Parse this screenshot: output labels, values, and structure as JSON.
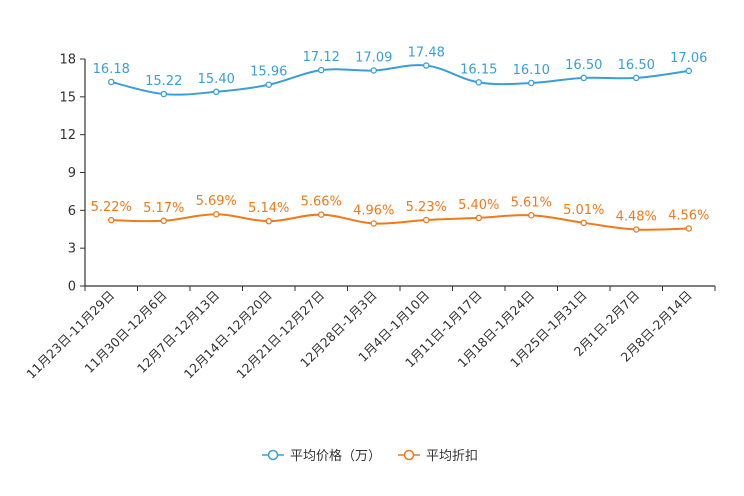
{
  "colors": {
    "price": "#3a9ed8",
    "discount": "#f07a1a",
    "axis": "#333333"
  },
  "chart_data": {
    "type": "line",
    "title": "",
    "xlabel": "",
    "ylabel": "",
    "ylim": [
      0,
      18
    ],
    "yticks": [
      0,
      3,
      6,
      9,
      12,
      15,
      18
    ],
    "yticks_text": [
      "0",
      "3",
      "6",
      "9",
      "12",
      "15",
      "18"
    ],
    "grid": false,
    "legend_position": "bottom-center",
    "categories": [
      "11月23日-11月29日",
      "11月30日-12月6日",
      "12月7日-12月13日",
      "12月14日-12月20日",
      "12月21日-12月27日",
      "12月28日-1月3日",
      "1月4日-1月10日",
      "1月11日-1月17日",
      "1月18日-1月24日",
      "1月25日-1月31日",
      "2月1日-2月7日",
      "2月8日-2月14日"
    ],
    "series": [
      {
        "name": "平均价格（万）",
        "values": [
          16.18,
          15.22,
          15.4,
          15.96,
          17.12,
          17.09,
          17.48,
          16.15,
          16.1,
          16.5,
          16.5,
          17.06
        ],
        "labels": [
          "16.18",
          "15.22",
          "15.40",
          "15.96",
          "17.12",
          "17.09",
          "17.48",
          "16.15",
          "16.10",
          "16.50",
          "16.50",
          "17.06"
        ]
      },
      {
        "name": "平均折扣",
        "values": [
          5.22,
          5.17,
          5.69,
          5.14,
          5.66,
          4.96,
          5.23,
          5.4,
          5.61,
          5.01,
          4.48,
          4.56
        ],
        "labels": [
          "5.22%",
          "5.17%",
          "5.69%",
          "5.14%",
          "5.66%",
          "4.96%",
          "5.23%",
          "5.40%",
          "5.61%",
          "5.01%",
          "4.48%",
          "4.56%"
        ]
      }
    ]
  }
}
